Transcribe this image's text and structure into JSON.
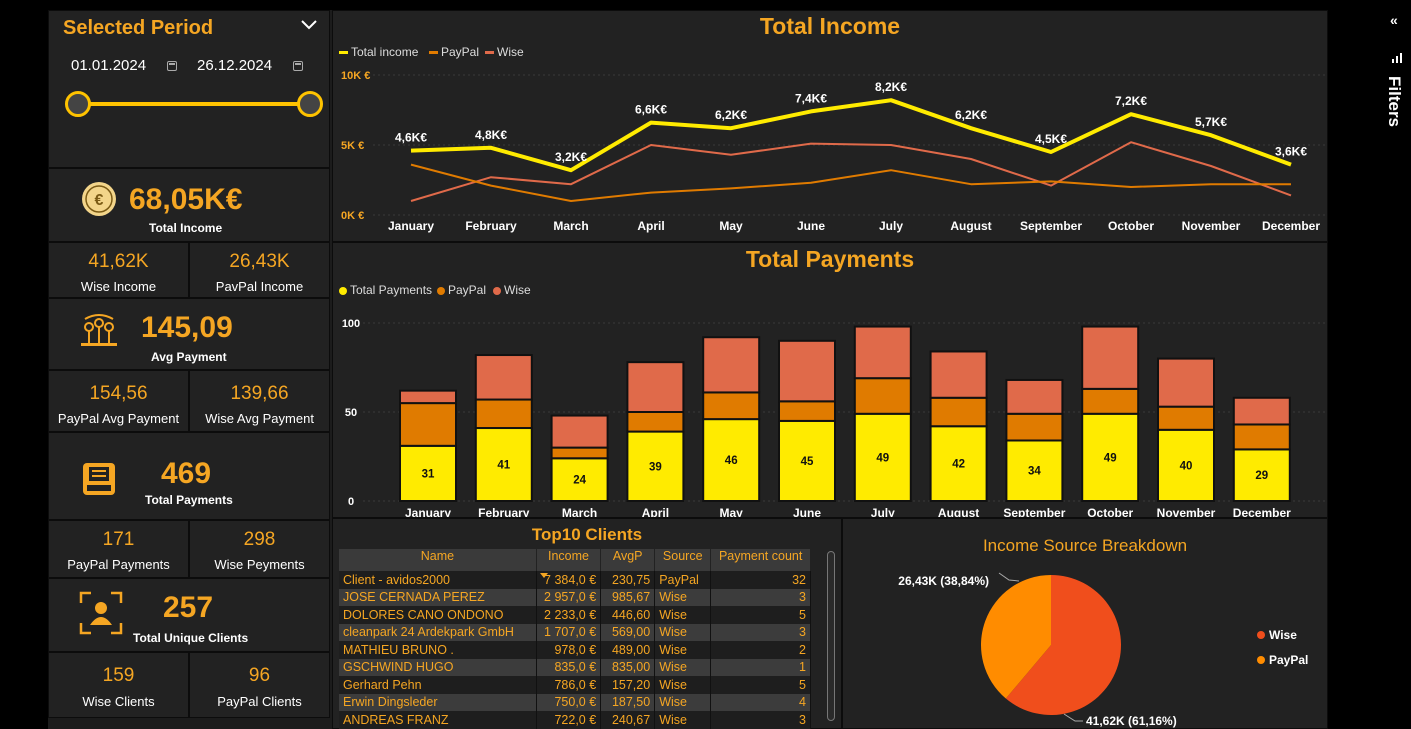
{
  "period": {
    "title": "Selected Period",
    "start_date": "01.01.2024",
    "end_date": "26.12.2024"
  },
  "kpis": {
    "total_income": {
      "value": "68,05K€",
      "label": "Total Income"
    },
    "wise_income": {
      "value": "41,62K",
      "label": "Wise Income"
    },
    "paypal_income": {
      "value": "26,43K",
      "label": "PavPal Income"
    },
    "avg_payment": {
      "value": "145,09",
      "label": "Avg Payment"
    },
    "paypal_avg": {
      "value": "154,56",
      "label": "PayPal Avg Payment"
    },
    "wise_avg": {
      "value": "139,66",
      "label": "Wise Avg Payment"
    },
    "total_payments": {
      "value": "469",
      "label": "Total Payments"
    },
    "paypal_payments": {
      "value": "171",
      "label": "PayPal Payments"
    },
    "wise_payments": {
      "value": "298",
      "label": "Wise Peyments"
    },
    "unique_clients": {
      "value": "257",
      "label": "Total Unique Clients"
    },
    "wise_clients": {
      "value": "159",
      "label": "Wise Clients"
    },
    "paypal_clients": {
      "value": "96",
      "label": "PayPal Clients"
    }
  },
  "icons": {
    "coin": "euro-coin-icon",
    "avg": "people-money-icon",
    "payments": "receipt-register-icon",
    "clients": "user-frame-icon"
  },
  "colors": {
    "accent": "#f5a623",
    "total": "#ffeb00",
    "paypal": "#e07b00",
    "wise": "#e06a4a",
    "pie_wise": "#f04e1c",
    "pie_paypal": "#ff8c00"
  },
  "income_chart": {
    "title": "Total Income",
    "legend": [
      "Total income",
      "PayPal",
      "Wise"
    ]
  },
  "payments_chart": {
    "title": "Total Payments",
    "legend": [
      "Total Payments",
      "PayPal",
      "Wise"
    ]
  },
  "chart_data": [
    {
      "type": "line",
      "title": "Total Income",
      "categories": [
        "January",
        "February",
        "March",
        "April",
        "May",
        "June",
        "July",
        "August",
        "September",
        "October",
        "November",
        "December"
      ],
      "y_ticks": [
        "0K €",
        "5K €",
        "10K €"
      ],
      "ylim": [
        0,
        10000
      ],
      "grid": true,
      "legend_position": "top-left",
      "series": [
        {
          "name": "Total income",
          "values": [
            4600,
            4800,
            3200,
            6600,
            6200,
            7400,
            8200,
            6200,
            4500,
            7200,
            5700,
            3600
          ],
          "labels": [
            "4,6K€",
            "4,8K€",
            "3,2K€",
            "6,6K€",
            "6,2K€",
            "7,4K€",
            "8,2K€",
            "6,2K€",
            "4,5K€",
            "7,2K€",
            "5,7K€",
            "3,6K€"
          ]
        },
        {
          "name": "PayPal",
          "values": [
            3600,
            2100,
            1000,
            1600,
            1900,
            2300,
            3200,
            2200,
            2400,
            2000,
            2200,
            2200
          ]
        },
        {
          "name": "Wise",
          "values": [
            1000,
            2700,
            2200,
            5000,
            4300,
            5100,
            5000,
            4000,
            2100,
            5200,
            3500,
            1400
          ]
        }
      ]
    },
    {
      "type": "bar",
      "title": "Total Payments",
      "categories": [
        "January",
        "February",
        "March",
        "April",
        "May",
        "June",
        "July",
        "August",
        "September",
        "October",
        "November",
        "December"
      ],
      "y_ticks": [
        "0",
        "50",
        "100"
      ],
      "ylim": [
        0,
        100
      ],
      "grid": true,
      "legend_position": "top-left",
      "series": [
        {
          "name": "Total Payments",
          "values": [
            31,
            41,
            24,
            39,
            46,
            45,
            49,
            42,
            34,
            49,
            40,
            29
          ]
        },
        {
          "name": "PayPal",
          "values": [
            24,
            16,
            6,
            11,
            15,
            11,
            20,
            16,
            15,
            14,
            13,
            14
          ]
        },
        {
          "name": "Wise",
          "values": [
            7,
            25,
            18,
            28,
            31,
            34,
            29,
            26,
            19,
            35,
            27,
            15
          ]
        }
      ]
    },
    {
      "type": "pie",
      "title": "Income Source Breakdown",
      "categories": [
        "Wise",
        "PayPal"
      ],
      "values": [
        41.62,
        26.43
      ],
      "labels": [
        "41,62K (61,16%)",
        "26,43K (38,84%)"
      ],
      "legend_position": "right"
    }
  ],
  "clients_table": {
    "title": "Top10 Clients",
    "columns": [
      "Name",
      "Income",
      "AvgP",
      "Source",
      "Payment count"
    ],
    "rows": [
      [
        "Client - avidos2000",
        "7 384,0 €",
        "230,75",
        "PayPal",
        "32"
      ],
      [
        "JOSE CERNADA PEREZ",
        "2 957,0 €",
        "985,67",
        "Wise",
        "3"
      ],
      [
        "DOLORES CANO ONDONO",
        "2 233,0 €",
        "446,60",
        "Wise",
        "5"
      ],
      [
        "cleanpark 24 Ardekpark GmbH",
        "1 707,0 €",
        "569,00",
        "Wise",
        "3"
      ],
      [
        "MATHIEU BRUNO .",
        "978,0 €",
        "489,00",
        "Wise",
        "2"
      ],
      [
        "GSCHWIND HUGO",
        "835,0 €",
        "835,00",
        "Wise",
        "1"
      ],
      [
        "Gerhard Pehn",
        "786,0 €",
        "157,20",
        "Wise",
        "5"
      ],
      [
        "Erwin Dingsleder",
        "750,0 €",
        "187,50",
        "Wise",
        "4"
      ],
      [
        "ANDREAS FRANZ",
        "722,0 €",
        "240,67",
        "Wise",
        "3"
      ]
    ]
  },
  "filters_pane": {
    "label": "Filters"
  }
}
